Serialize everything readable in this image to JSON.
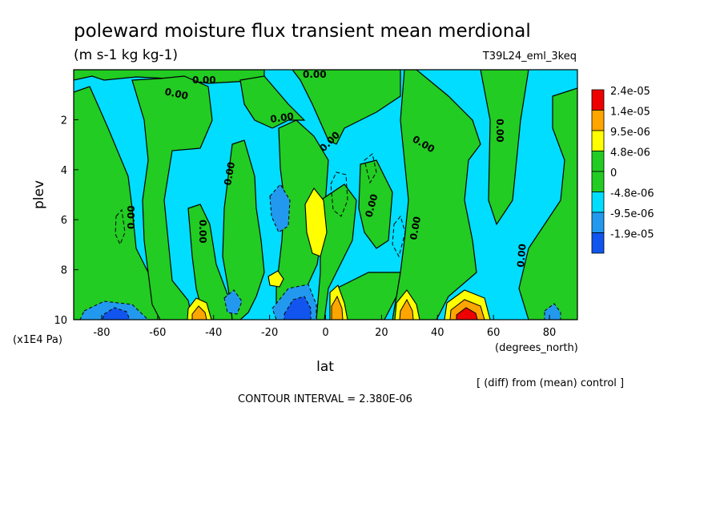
{
  "title": "poleward moisture flux transient mean merdional",
  "units": "(m s-1 kg kg-1)",
  "run_name": "T39L24_eml_3keq",
  "xlabel": "lat",
  "x_unit": "(degrees_north)",
  "ylabel": "plev",
  "y_unit": "(x1E4 Pa)",
  "diff_note": "[ (diff) from (mean) control ]",
  "contour_interval": "CONTOUR INTERVAL = 2.380E-06",
  "contour_label": "0.00",
  "colors": {
    "red": "#ee0000",
    "orange": "#ffa500",
    "yellow": "#ffff00",
    "green": "#22cc22",
    "cyan": "#00ddff",
    "blue_light": "#2299ee",
    "blue": "#1155ee"
  },
  "chart_data": {
    "type": "heatmap",
    "title": "poleward moisture flux transient mean merdional",
    "xlabel": "lat",
    "ylabel": "plev",
    "xlim": [
      -90,
      90
    ],
    "ylim": [
      10,
      0
    ],
    "x_ticks": [
      "-80",
      "-60",
      "-40",
      "-20",
      "0",
      "20",
      "40",
      "60",
      "80"
    ],
    "x_tick_values": [
      -80,
      -60,
      -40,
      -20,
      0,
      20,
      40,
      60,
      80
    ],
    "y_ticks": [
      "2",
      "4",
      "6",
      "8",
      "10"
    ],
    "y_tick_values": [
      2,
      4,
      6,
      8,
      10
    ],
    "legend": {
      "position": "right",
      "labels": [
        "2.4e-05",
        "1.4e-05",
        "9.5e-06",
        "4.8e-06",
        "0",
        "-4.8e-06",
        "-9.5e-06",
        "-1.9e-05"
      ],
      "colors": [
        "#ee0000",
        "#ffa500",
        "#ffff00",
        "#22cc22",
        "#22cc22",
        "#00ddff",
        "#2299ee",
        "#1155ee"
      ]
    },
    "features": [
      {
        "kind": "positive",
        "lat": -5,
        "plev": 6.5,
        "level": "yellow"
      },
      {
        "kind": "positive",
        "lat": 4,
        "plev": 9.6,
        "level": "orange"
      },
      {
        "kind": "positive",
        "lat": 29,
        "plev": 9.6,
        "level": "orange"
      },
      {
        "kind": "positive",
        "lat": -44,
        "plev": 9.6,
        "level": "orange"
      },
      {
        "kind": "positive",
        "lat": -18,
        "plev": 8.3,
        "level": "yellow"
      },
      {
        "kind": "positive",
        "lat": 47,
        "plev": 9.85,
        "level": "red"
      },
      {
        "kind": "negative",
        "lat": -14,
        "plev": 9.5,
        "level": "blue"
      },
      {
        "kind": "negative",
        "lat": -74,
        "plev": 9.7,
        "level": "blue"
      },
      {
        "kind": "negative",
        "lat": -33,
        "plev": 9.2,
        "level": "blue_light"
      },
      {
        "kind": "negative",
        "lat": -14,
        "plev": 6.0,
        "level": "blue_light"
      }
    ]
  }
}
